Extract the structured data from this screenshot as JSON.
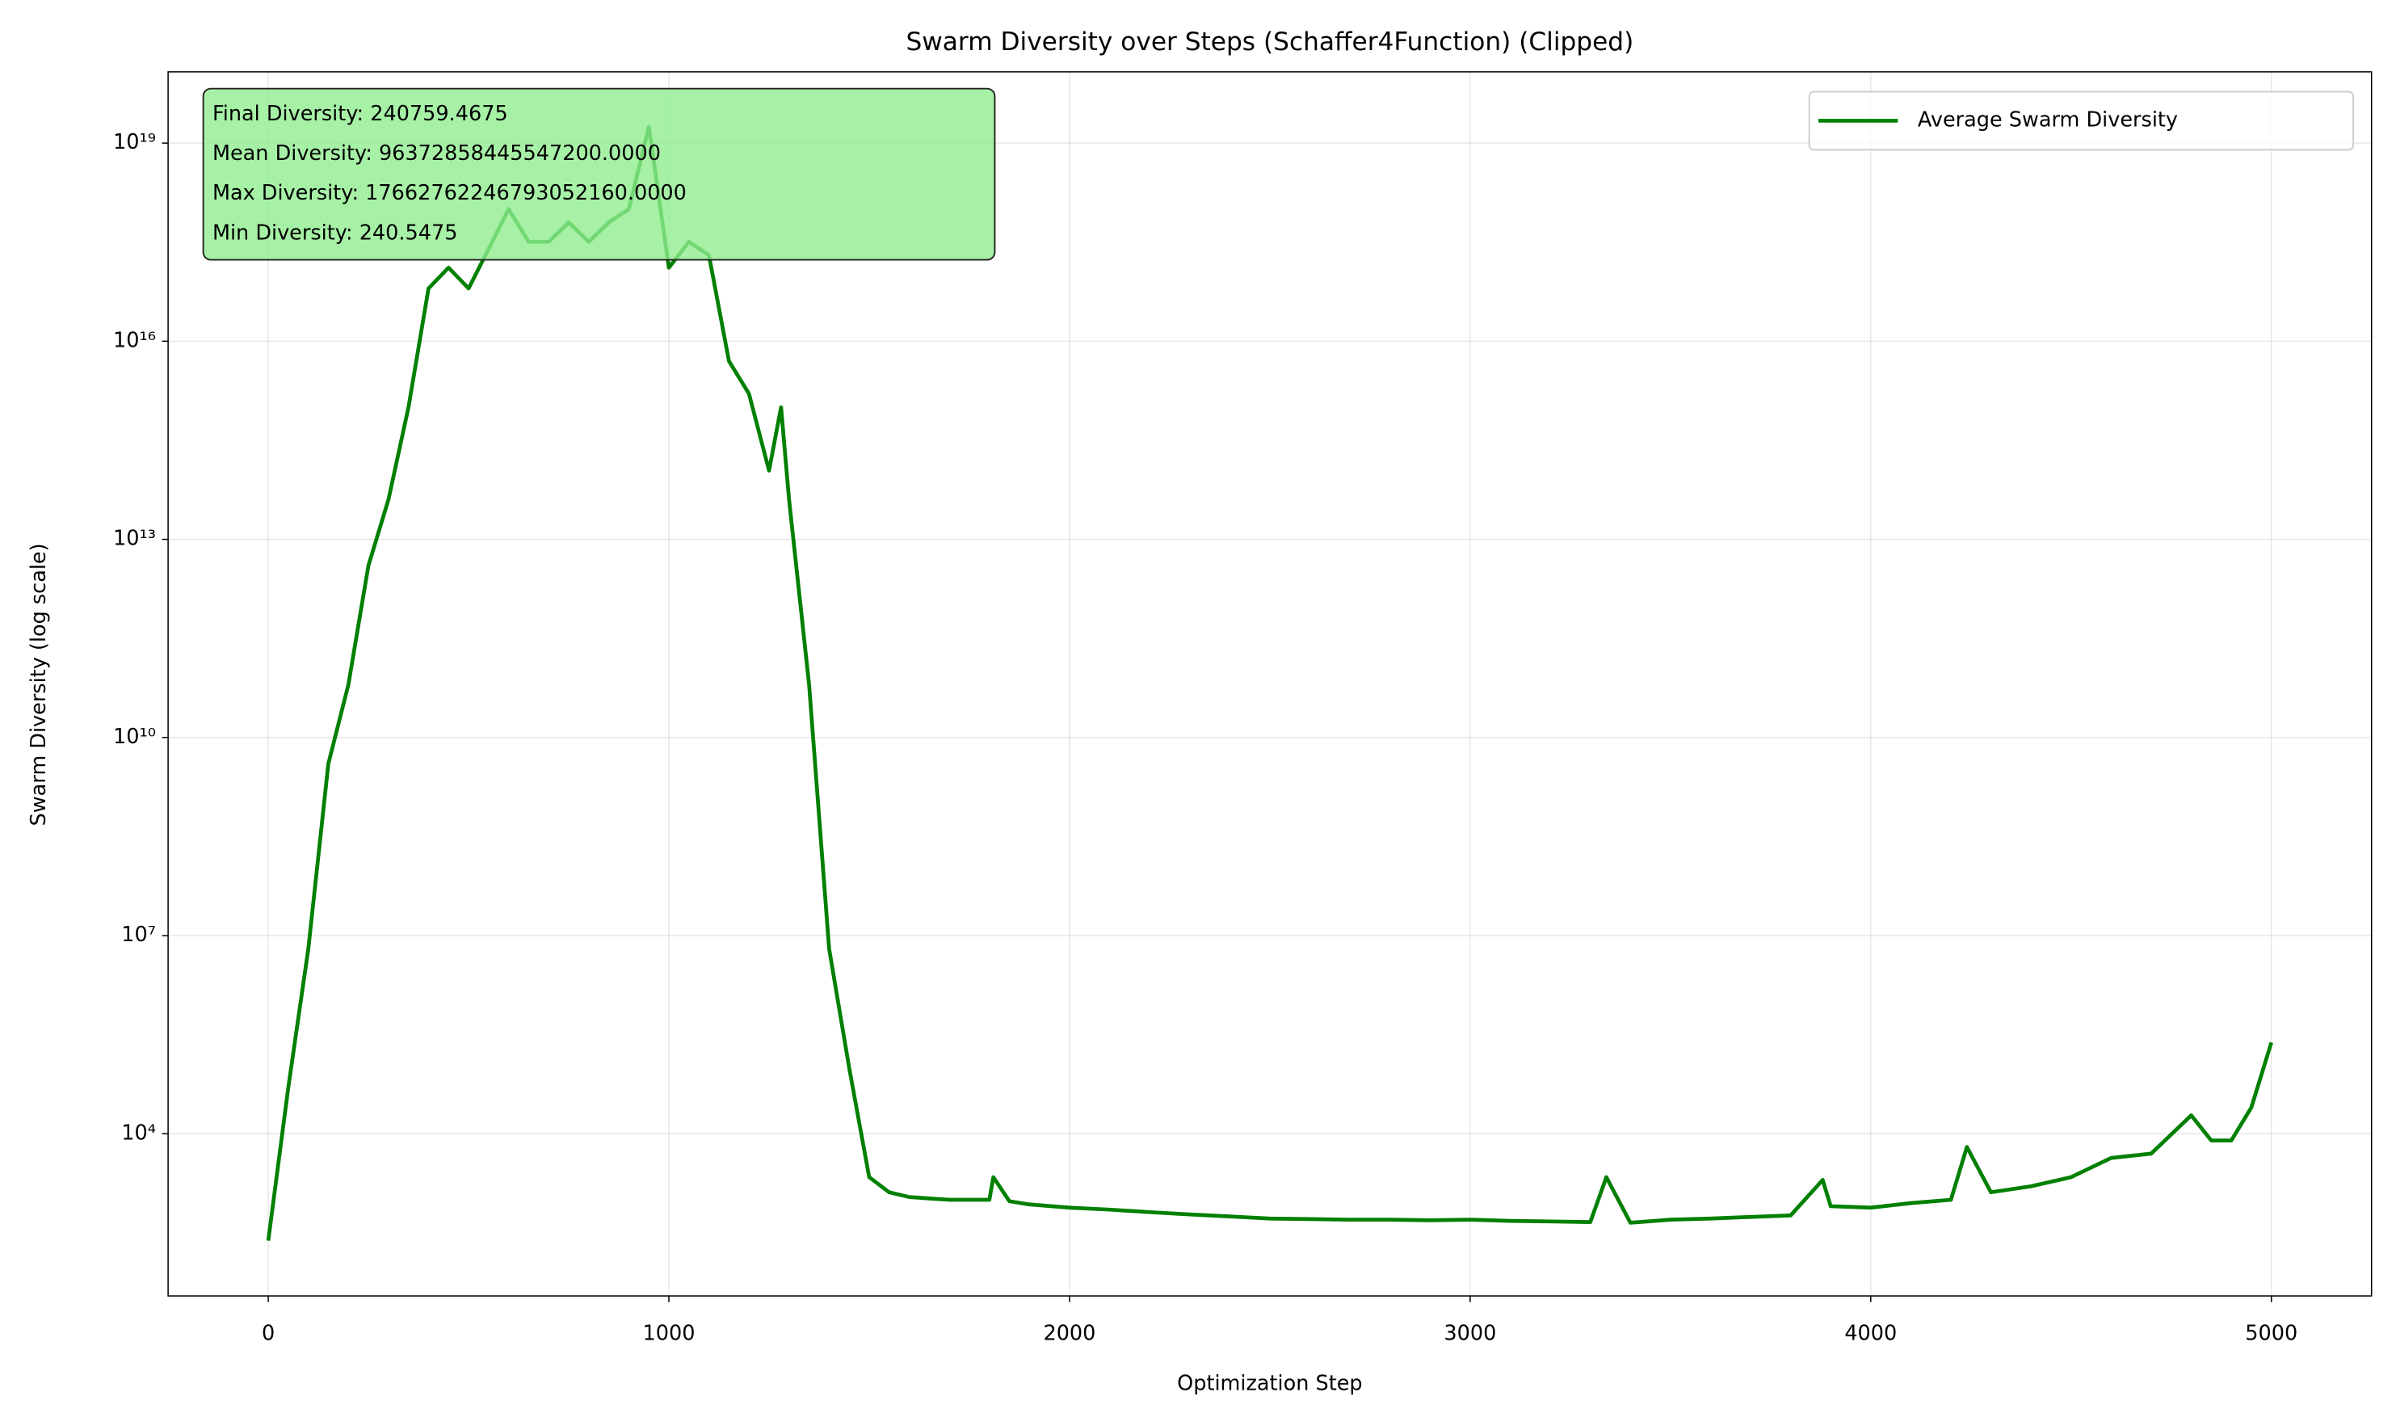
{
  "chart_data": {
    "type": "line",
    "title": "Swarm Diversity over Steps (Schaffer4Function) (Clipped)",
    "x_label": "Optimization Step",
    "y_label": "Swarm Diversity (log scale)",
    "log_y": true,
    "grid": true,
    "legend": "upper right",
    "annotation_lines": [
      "Final Diversity: 240759.4675",
      "Mean Diversity: 96372858445547200.0000",
      "Max Diversity: 17662762246793052160.0000",
      "Min Diversity: 240.5475"
    ],
    "annotation_color": "#90ee90",
    "xlim": [
      -250,
      5250
    ],
    "xticks": [
      0,
      1000,
      2000,
      3000,
      4000,
      5000
    ],
    "ylim": [
      35,
      1.2e+20
    ],
    "yticks": [
      {
        "value": 10000,
        "label": "10⁴"
      },
      {
        "value": 10000000,
        "label": "10⁷"
      },
      {
        "value": 10000000000,
        "label": "10¹⁰"
      },
      {
        "value": 10000000000000,
        "label": "10¹³"
      },
      {
        "value": 10000000000000000,
        "label": "10¹⁶"
      },
      {
        "value": 10000000000000000000,
        "label": "10¹⁹"
      }
    ],
    "x": [
      0,
      50,
      100,
      150,
      200,
      250,
      300,
      350,
      400,
      450,
      500,
      550,
      600,
      650,
      700,
      750,
      800,
      850,
      900,
      950,
      1000,
      1050,
      1100,
      1150,
      1200,
      1250,
      1280,
      1300,
      1350,
      1400,
      1450,
      1500,
      1550,
      1600,
      1700,
      1800,
      1810,
      1850,
      1900,
      2000,
      2100,
      2200,
      2300,
      2400,
      2500,
      2600,
      2700,
      2800,
      2900,
      3000,
      3100,
      3200,
      3300,
      3340,
      3400,
      3500,
      3600,
      3700,
      3800,
      3880,
      3900,
      4000,
      4100,
      4200,
      4240,
      4300,
      4400,
      4500,
      4600,
      4700,
      4800,
      4850,
      4900,
      4950,
      5000
    ],
    "series": [
      {
        "name": "Average Swarm Diversity",
        "color": "#008000",
        "values": [
          240.5,
          50000,
          6300000,
          4000000000.0,
          63000000000.0,
          4000000000000.0,
          40000000000000.0,
          1000000000000000.0,
          6.3e+16,
          1.3e+17,
          6.3e+16,
          2.5e+17,
          1e+18,
          3.2e+17,
          3.2e+17,
          6.3e+17,
          3.2e+17,
          6.3e+17,
          1e+18,
          1.766e+19,
          1.3e+17,
          3.2e+17,
          2e+17,
          5000000000000000.0,
          1600000000000000.0,
          110000000000000.0,
          1000000000000000.0,
          40000000000000.0,
          63000000000.0,
          6300000,
          100000,
          2200,
          1300,
          1100,
          1000,
          1000,
          2200,
          950,
          850,
          760,
          710,
          650,
          600,
          560,
          520,
          510,
          500,
          500,
          490,
          500,
          480,
          470,
          460,
          2200,
          450,
          500,
          520,
          550,
          580,
          2000,
          800,
          760,
          890,
          1000,
          6300,
          1300,
          1600,
          2200,
          4300,
          5000,
          19000,
          7900,
          7900,
          25000,
          240759.4675
        ]
      }
    ]
  }
}
